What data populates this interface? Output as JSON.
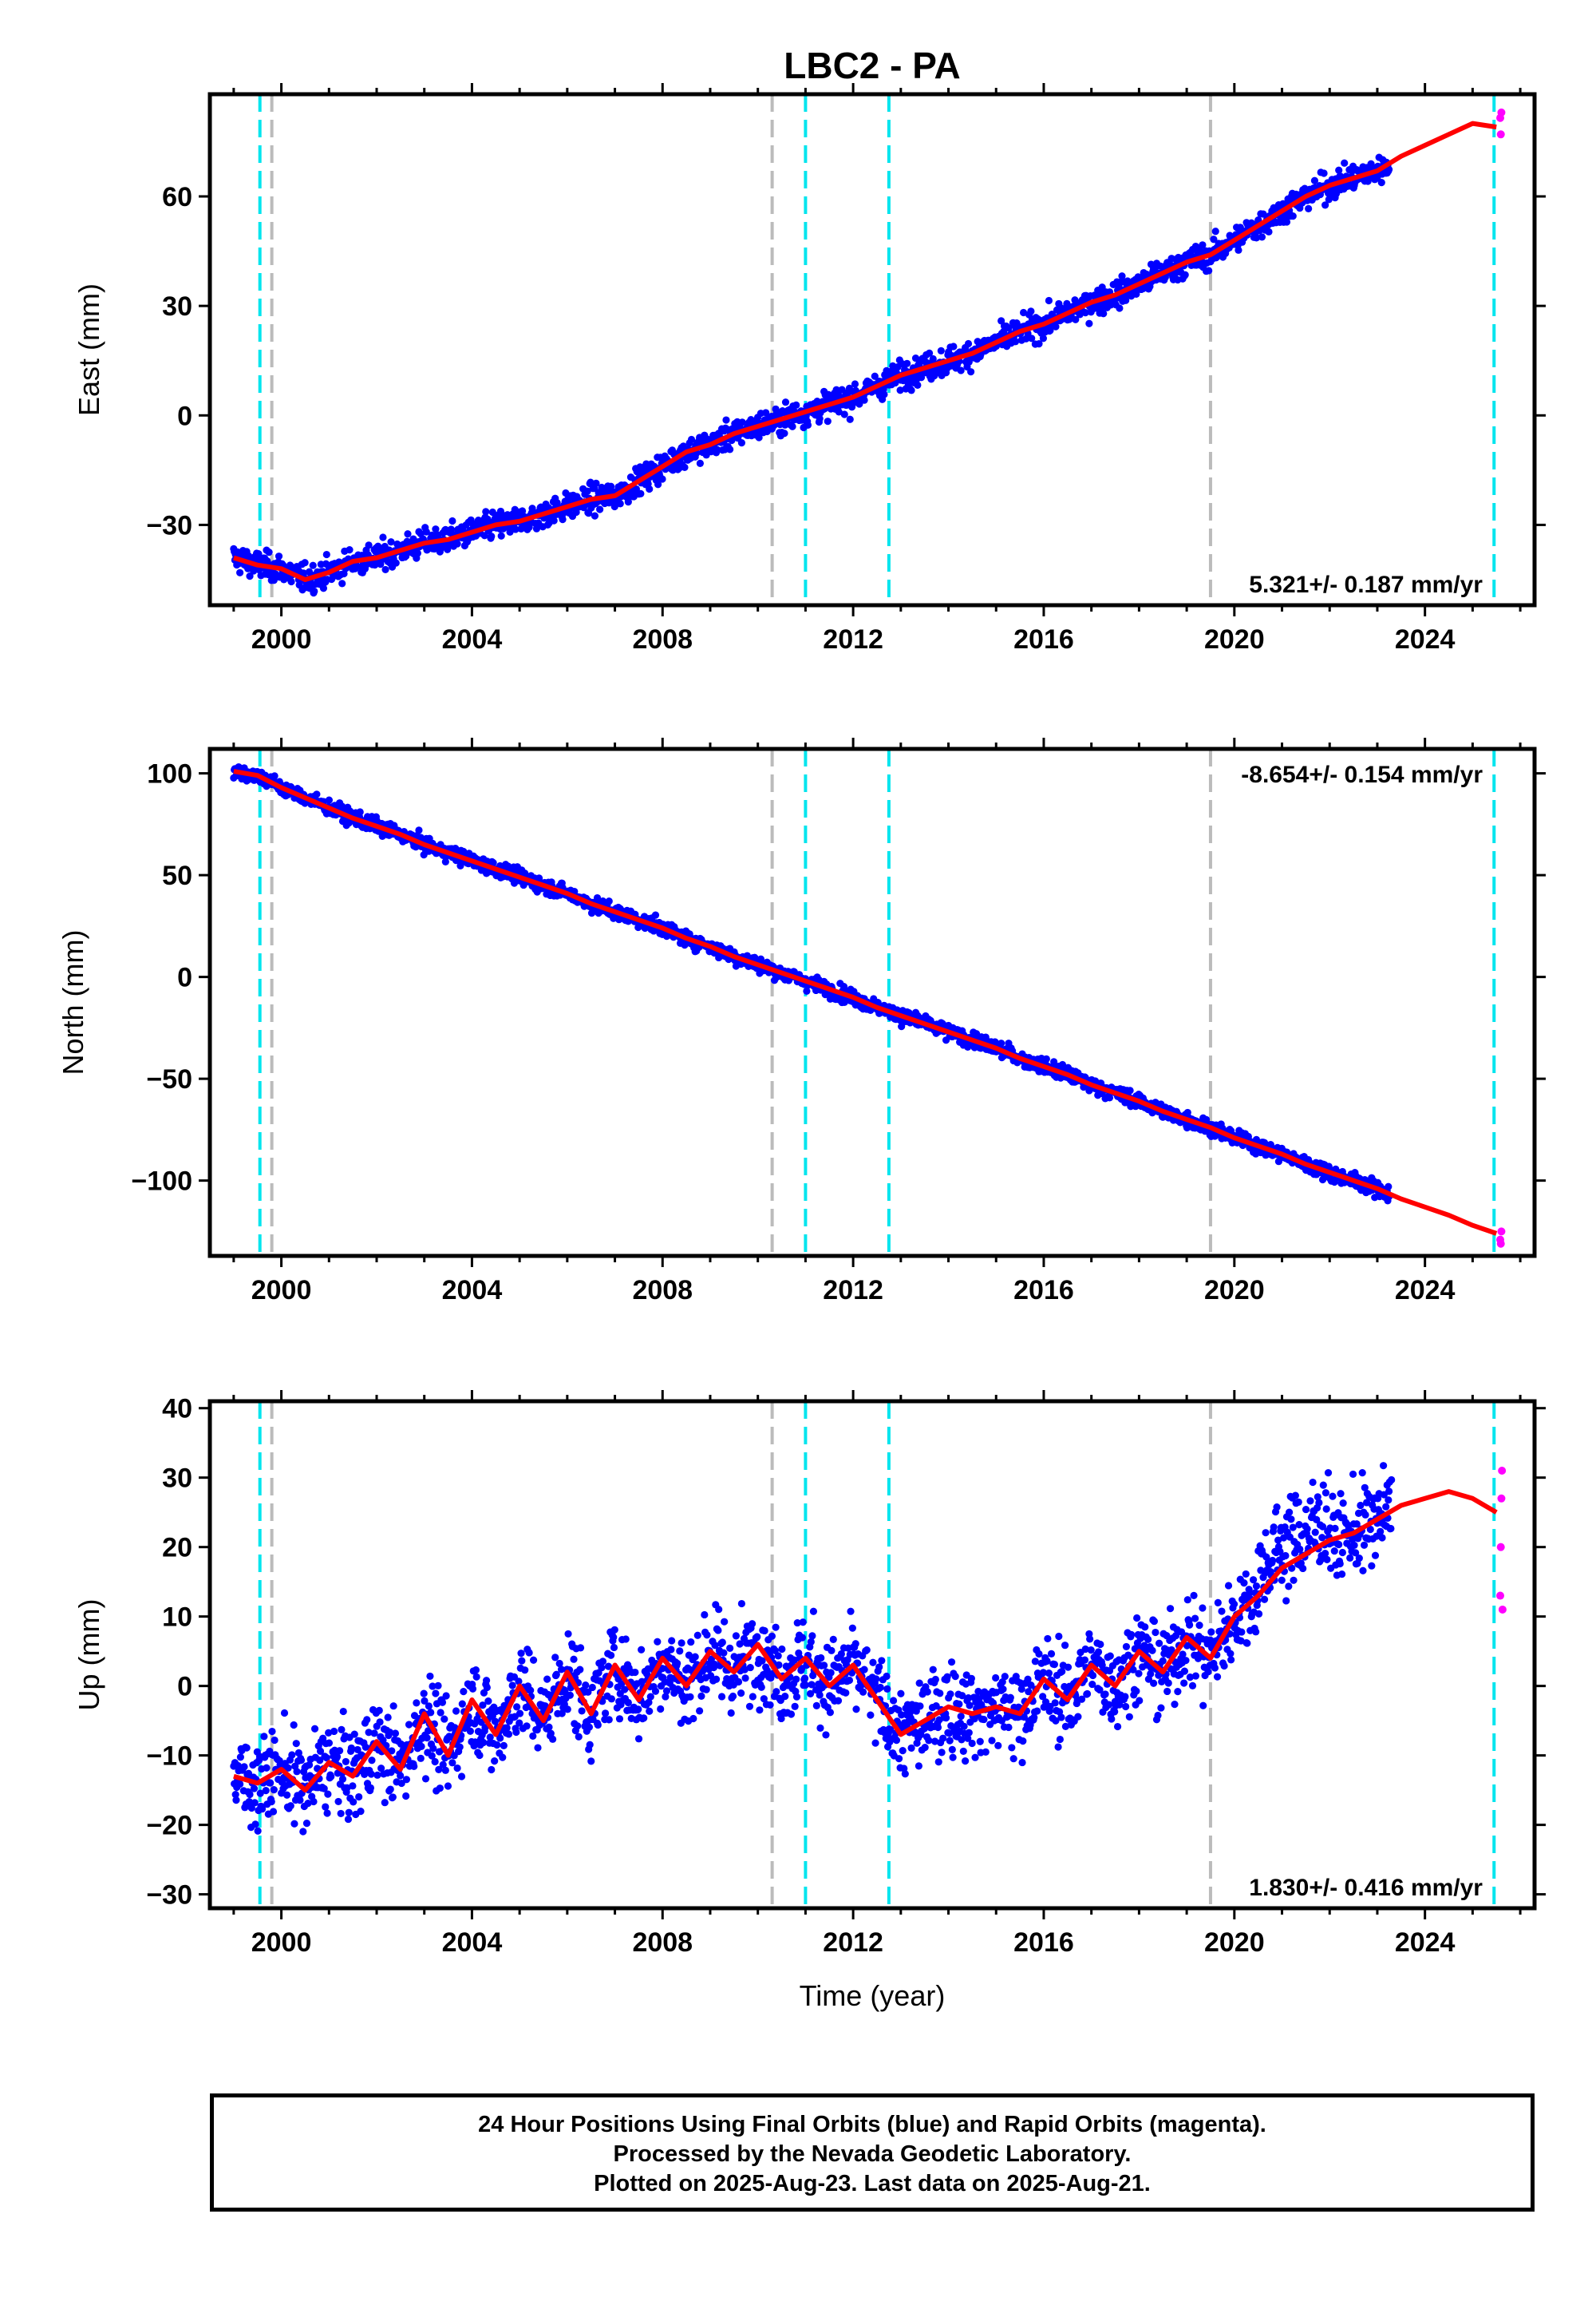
{
  "chart_data": {
    "title": "LBC2 - PA",
    "type": "scatter",
    "xlabel": "Time (year)",
    "xlim": [
      1998.5,
      2026.3
    ],
    "xticks": [
      2000,
      2004,
      2008,
      2012,
      2016,
      2020,
      2024
    ],
    "event_lines": {
      "antenna_change_cyan": [
        1999.55,
        2025.45,
        2011.0,
        2012.75
      ],
      "other_gray": [
        1999.8,
        2010.3,
        2019.5
      ]
    },
    "colors": {
      "final_orbits": "#0000ff",
      "rapid_orbits": "#ff00ff",
      "model": "#ff0000",
      "cyan_line": "#00e5ee",
      "gray_line": "#bbbbbb"
    },
    "panels": [
      {
        "ylabel": "East (mm)",
        "ylim": [
          -52,
          88
        ],
        "yticks": [
          -30,
          0,
          30,
          60
        ],
        "rate": "5.321+/- 0.187 mm/yr",
        "rate_position": "bottom-right",
        "series": [
          {
            "name": "model",
            "x": [
              1999.0,
              1999.5,
              2000.0,
              2000.5,
              2001.0,
              2001.5,
              2002.0,
              2002.5,
              2003.0,
              2003.5,
              2004.0,
              2004.5,
              2005.0,
              2005.5,
              2006.0,
              2006.5,
              2007.0,
              2007.5,
              2008.0,
              2008.5,
              2009.0,
              2009.5,
              2010.0,
              2010.5,
              2011.0,
              2011.5,
              2012.0,
              2012.5,
              2013.0,
              2013.5,
              2014.0,
              2014.5,
              2015.0,
              2015.5,
              2016.0,
              2016.5,
              2017.0,
              2017.5,
              2018.0,
              2018.5,
              2019.0,
              2019.5,
              2020.0,
              2020.5,
              2021.0,
              2021.5,
              2022.0,
              2022.5,
              2023.0,
              2023.5,
              2024.0,
              2024.5,
              2025.0,
              2025.5
            ],
            "y": [
              -39,
              -41,
              -42,
              -45,
              -43,
              -40,
              -39,
              -37,
              -35,
              -34,
              -32,
              -30,
              -29,
              -27,
              -25,
              -23,
              -22,
              -18,
              -14,
              -10,
              -8,
              -5,
              -3,
              -1,
              1,
              3,
              5,
              8,
              11,
              13,
              15,
              17,
              20,
              23,
              25,
              28,
              31,
              33,
              36,
              39,
              42,
              44,
              48,
              52,
              56,
              60,
              63,
              65,
              67,
              71,
              74,
              77,
              80,
              79
            ]
          }
        ]
      },
      {
        "ylabel": "North (mm)",
        "ylim": [
          -137,
          112
        ],
        "yticks": [
          -100,
          -50,
          0,
          50,
          100
        ],
        "rate": "-8.654+/- 0.154 mm/yr",
        "rate_position": "top-right",
        "series": [
          {
            "name": "model",
            "x": [
              1999.0,
              1999.5,
              2000.0,
              2000.5,
              2001.0,
              2001.5,
              2002.0,
              2002.5,
              2003.0,
              2003.5,
              2004.0,
              2004.5,
              2005.0,
              2005.5,
              2006.0,
              2006.5,
              2007.0,
              2007.5,
              2008.0,
              2008.5,
              2009.0,
              2009.5,
              2010.0,
              2010.5,
              2011.0,
              2011.5,
              2012.0,
              2012.5,
              2013.0,
              2013.5,
              2014.0,
              2014.5,
              2015.0,
              2015.5,
              2016.0,
              2016.5,
              2017.0,
              2017.5,
              2018.0,
              2018.5,
              2019.0,
              2019.5,
              2020.0,
              2020.5,
              2021.0,
              2021.5,
              2022.0,
              2022.5,
              2023.0,
              2023.5,
              2024.0,
              2024.5,
              2025.0,
              2025.5
            ],
            "y": [
              101,
              99,
              93,
              88,
              83,
              78,
              74,
              70,
              65,
              61,
              57,
              53,
              49,
              45,
              41,
              36,
              32,
              28,
              24,
              19,
              15,
              10,
              6,
              2,
              -2,
              -6,
              -10,
              -15,
              -19,
              -23,
              -27,
              -31,
              -35,
              -40,
              -44,
              -48,
              -53,
              -57,
              -61,
              -66,
              -70,
              -74,
              -79,
              -83,
              -87,
              -92,
              -96,
              -100,
              -104,
              -109,
              -113,
              -117,
              -122,
              -126
            ]
          }
        ]
      },
      {
        "ylabel": "Up (mm)",
        "ylim": [
          -32,
          41
        ],
        "yticks": [
          -30,
          -20,
          -10,
          0,
          10,
          20,
          30,
          40
        ],
        "rate": "1.830+/- 0.416 mm/yr",
        "rate_position": "bottom-right",
        "series": [
          {
            "name": "model",
            "x": [
              1999.0,
              1999.5,
              2000.0,
              2000.5,
              2001.0,
              2001.5,
              2002.0,
              2002.5,
              2003.0,
              2003.5,
              2004.0,
              2004.5,
              2005.0,
              2005.5,
              2006.0,
              2006.5,
              2007.0,
              2007.5,
              2008.0,
              2008.5,
              2009.0,
              2009.5,
              2010.0,
              2010.5,
              2011.0,
              2011.5,
              2012.0,
              2012.5,
              2013.0,
              2013.5,
              2014.0,
              2014.5,
              2015.0,
              2015.5,
              2016.0,
              2016.5,
              2017.0,
              2017.5,
              2018.0,
              2018.5,
              2019.0,
              2019.5,
              2020.0,
              2020.5,
              2021.0,
              2021.5,
              2022.0,
              2022.5,
              2023.0,
              2023.5,
              2024.0,
              2024.5,
              2025.0,
              2025.5
            ],
            "y": [
              -13,
              -14,
              -12,
              -15,
              -11,
              -13,
              -8,
              -12,
              -4,
              -10,
              -2,
              -7,
              0,
              -5,
              2,
              -4,
              3,
              -2,
              4,
              0,
              5,
              2,
              6,
              1,
              4,
              0,
              3,
              -2,
              -7,
              -5,
              -3,
              -4,
              -3,
              -4,
              1,
              -2,
              3,
              0,
              5,
              2,
              7,
              4,
              10,
              13,
              17,
              19,
              21,
              22,
              24,
              26,
              27,
              28,
              27,
              25
            ]
          }
        ]
      }
    ]
  },
  "footer": {
    "line1": "24 Hour Positions Using Final Orbits (blue) and Rapid Orbits (magenta).",
    "line2": "Processed by the Nevada Geodetic Laboratory.",
    "line3": "Plotted on 2025-Aug-23. Last data on 2025-Aug-21."
  }
}
